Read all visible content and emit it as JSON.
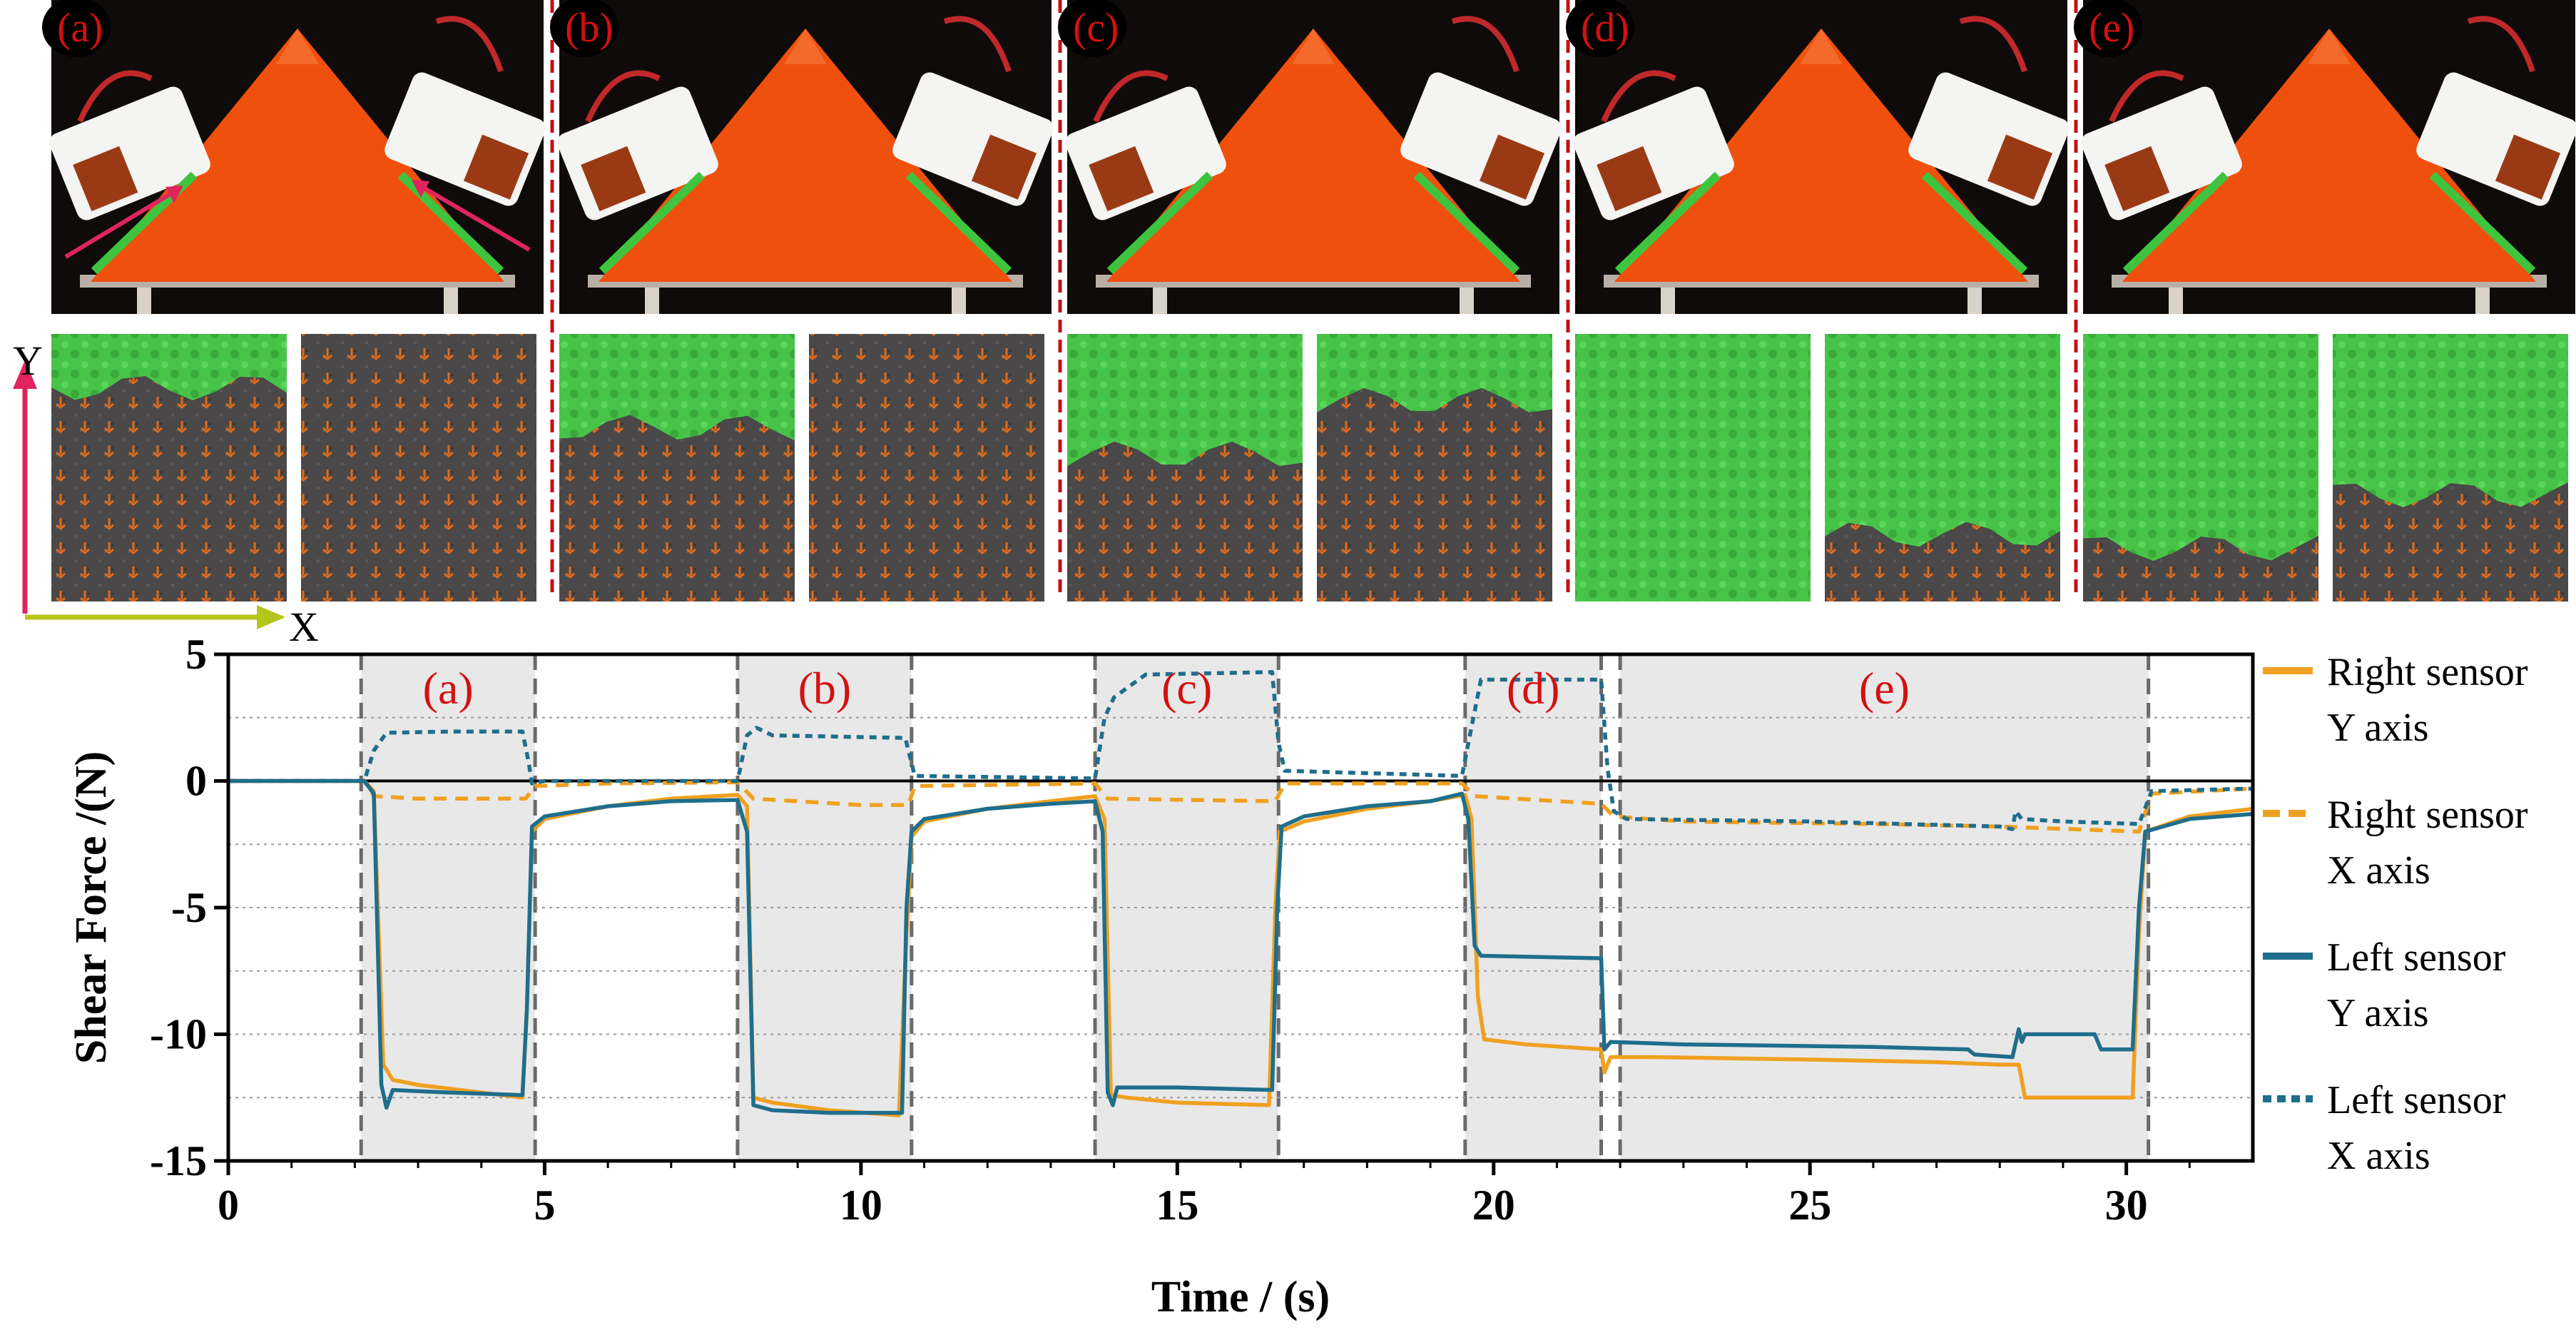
{
  "panels": [
    {
      "label": "(a)"
    },
    {
      "label": "(b)"
    },
    {
      "label": "(c)"
    },
    {
      "label": "(d)"
    },
    {
      "label": "(e)"
    }
  ],
  "axes_indicator": {
    "y_label": "Y",
    "x_label": "X",
    "y_color": "#e0245e",
    "x_color": "#b5c61a"
  },
  "colors": {
    "orange": "#f0a020",
    "teal": "#1f6e8c",
    "green": "#3ec43e",
    "red_label": "#d41010",
    "object": "#f0500e"
  },
  "chart_data": {
    "type": "line",
    "title": "",
    "xlabel": "Time / (s)",
    "ylabel": "Shear Force /(N)",
    "xlim": [
      0,
      32
    ],
    "ylim": [
      -15,
      5
    ],
    "xticks": [
      0,
      5,
      10,
      15,
      20,
      25,
      30
    ],
    "yticks": [
      5,
      0,
      -5,
      -10,
      -15
    ],
    "phases": [
      {
        "label": "(a)",
        "start": 2.1,
        "end": 4.85
      },
      {
        "label": "(b)",
        "start": 8.05,
        "end": 10.8
      },
      {
        "label": "(c)",
        "start": 13.7,
        "end": 16.6
      },
      {
        "label": "(d)",
        "start": 19.55,
        "end": 21.7
      },
      {
        "label": "(e)",
        "start": 22.0,
        "end": 30.35
      }
    ],
    "series": [
      {
        "name": "Right sensor Y axis",
        "legend": [
          "Right sensor",
          "Y axis"
        ],
        "color": "#f0a020",
        "style": "solid",
        "points": [
          [
            0,
            0
          ],
          [
            2.15,
            0
          ],
          [
            2.3,
            -0.4
          ],
          [
            2.45,
            -11.2
          ],
          [
            2.6,
            -11.8
          ],
          [
            3,
            -12.0
          ],
          [
            4,
            -12.3
          ],
          [
            4.65,
            -12.5
          ],
          [
            4.72,
            -9
          ],
          [
            4.8,
            -2
          ],
          [
            5,
            -1.5
          ],
          [
            6,
            -1.0
          ],
          [
            7,
            -0.7
          ],
          [
            8.05,
            -0.55
          ],
          [
            8.2,
            -1
          ],
          [
            8.3,
            -12.5
          ],
          [
            8.6,
            -12.7
          ],
          [
            9.5,
            -13.0
          ],
          [
            10.6,
            -13.2
          ],
          [
            10.72,
            -6
          ],
          [
            10.8,
            -2.2
          ],
          [
            11,
            -1.6
          ],
          [
            12,
            -1.1
          ],
          [
            13,
            -0.8
          ],
          [
            13.7,
            -0.6
          ],
          [
            13.85,
            -1.5
          ],
          [
            13.95,
            -12.4
          ],
          [
            14.2,
            -12.5
          ],
          [
            15,
            -12.7
          ],
          [
            16.45,
            -12.8
          ],
          [
            16.55,
            -5
          ],
          [
            16.62,
            -2
          ],
          [
            17,
            -1.6
          ],
          [
            18,
            -1.1
          ],
          [
            19,
            -0.8
          ],
          [
            19.55,
            -0.55
          ],
          [
            19.65,
            -1.5
          ],
          [
            19.75,
            -8.5
          ],
          [
            19.85,
            -10.2
          ],
          [
            20.5,
            -10.4
          ],
          [
            21.7,
            -10.6
          ],
          [
            21.75,
            -11.5
          ],
          [
            21.85,
            -10.9
          ],
          [
            22.5,
            -10.9
          ],
          [
            25,
            -11.0
          ],
          [
            27,
            -11.1
          ],
          [
            28,
            -11.2
          ],
          [
            28.3,
            -11.2
          ],
          [
            28.4,
            -12.5
          ],
          [
            29,
            -12.5
          ],
          [
            30.1,
            -12.5
          ],
          [
            30.2,
            -6
          ],
          [
            30.3,
            -2
          ],
          [
            31,
            -1.4
          ],
          [
            32,
            -1.1
          ]
        ]
      },
      {
        "name": "Right sensor X axis",
        "legend": [
          "Right sensor",
          "X axis"
        ],
        "color": "#f0a020",
        "style": "dashed",
        "points": [
          [
            0,
            0
          ],
          [
            2.15,
            0
          ],
          [
            2.3,
            -0.6
          ],
          [
            3,
            -0.7
          ],
          [
            4.7,
            -0.7
          ],
          [
            4.85,
            -0.2
          ],
          [
            6,
            -0.1
          ],
          [
            8.05,
            -0.05
          ],
          [
            8.3,
            -0.7
          ],
          [
            10,
            -0.95
          ],
          [
            10.75,
            -0.95
          ],
          [
            10.85,
            -0.2
          ],
          [
            13.7,
            -0.1
          ],
          [
            13.9,
            -0.7
          ],
          [
            16.55,
            -0.8
          ],
          [
            16.7,
            -0.1
          ],
          [
            19.5,
            -0.1
          ],
          [
            19.7,
            -0.6
          ],
          [
            21.7,
            -0.9
          ],
          [
            21.9,
            -1.4
          ],
          [
            23,
            -1.6
          ],
          [
            26,
            -1.7
          ],
          [
            28,
            -1.8
          ],
          [
            30.2,
            -2.0
          ],
          [
            30.4,
            -0.5
          ],
          [
            32,
            -0.3
          ]
        ]
      },
      {
        "name": "Left sensor Y axis",
        "legend": [
          "Left sensor",
          "Y axis"
        ],
        "color": "#1f6e8c",
        "style": "solid",
        "points": [
          [
            0,
            0
          ],
          [
            2.15,
            0
          ],
          [
            2.3,
            -0.5
          ],
          [
            2.42,
            -12.0
          ],
          [
            2.5,
            -12.9
          ],
          [
            2.6,
            -12.2
          ],
          [
            3.5,
            -12.3
          ],
          [
            4.65,
            -12.4
          ],
          [
            4.72,
            -9
          ],
          [
            4.8,
            -1.8
          ],
          [
            5,
            -1.4
          ],
          [
            6,
            -1.0
          ],
          [
            7,
            -0.8
          ],
          [
            8.05,
            -0.75
          ],
          [
            8.2,
            -2
          ],
          [
            8.3,
            -12.8
          ],
          [
            8.6,
            -13.0
          ],
          [
            9.5,
            -13.1
          ],
          [
            10.65,
            -13.1
          ],
          [
            10.72,
            -5
          ],
          [
            10.8,
            -2.0
          ],
          [
            11,
            -1.5
          ],
          [
            12,
            -1.1
          ],
          [
            13,
            -0.9
          ],
          [
            13.7,
            -0.8
          ],
          [
            13.82,
            -2
          ],
          [
            13.9,
            -12.3
          ],
          [
            13.98,
            -12.8
          ],
          [
            14.05,
            -12.1
          ],
          [
            15,
            -12.1
          ],
          [
            16.5,
            -12.2
          ],
          [
            16.58,
            -5
          ],
          [
            16.65,
            -1.8
          ],
          [
            17,
            -1.4
          ],
          [
            18,
            -1.0
          ],
          [
            19,
            -0.8
          ],
          [
            19.5,
            -0.5
          ],
          [
            19.6,
            -1.5
          ],
          [
            19.7,
            -6.5
          ],
          [
            19.8,
            -6.9
          ],
          [
            21.7,
            -7.0
          ],
          [
            21.75,
            -10.6
          ],
          [
            21.85,
            -10.3
          ],
          [
            23,
            -10.4
          ],
          [
            26,
            -10.5
          ],
          [
            27.5,
            -10.6
          ],
          [
            27.6,
            -10.8
          ],
          [
            28.2,
            -10.9
          ],
          [
            28.3,
            -9.8
          ],
          [
            28.35,
            -10.3
          ],
          [
            28.4,
            -10.0
          ],
          [
            29.5,
            -10.0
          ],
          [
            29.6,
            -10.6
          ],
          [
            30.1,
            -10.6
          ],
          [
            30.2,
            -5
          ],
          [
            30.3,
            -2
          ],
          [
            31,
            -1.5
          ],
          [
            32,
            -1.3
          ]
        ]
      },
      {
        "name": "Left sensor X axis",
        "legend": [
          "Left sensor",
          "X axis"
        ],
        "color": "#1f6e8c",
        "style": "dotted",
        "points": [
          [
            0,
            0
          ],
          [
            2.15,
            0
          ],
          [
            2.3,
            1.2
          ],
          [
            2.5,
            1.9
          ],
          [
            3.5,
            1.95
          ],
          [
            4.65,
            1.95
          ],
          [
            4.75,
            0.7
          ],
          [
            4.8,
            -0.1
          ],
          [
            5,
            0
          ],
          [
            8.05,
            0
          ],
          [
            8.2,
            1.8
          ],
          [
            8.35,
            2.1
          ],
          [
            8.6,
            1.8
          ],
          [
            10.7,
            1.7
          ],
          [
            10.85,
            0.2
          ],
          [
            13.7,
            0.1
          ],
          [
            13.85,
            2.5
          ],
          [
            14,
            3.3
          ],
          [
            14.5,
            4.2
          ],
          [
            16.5,
            4.3
          ],
          [
            16.6,
            1.5
          ],
          [
            16.7,
            0.4
          ],
          [
            19.5,
            0.2
          ],
          [
            19.6,
            1.5
          ],
          [
            19.8,
            4.0
          ],
          [
            21.7,
            4.0
          ],
          [
            21.8,
            0.5
          ],
          [
            21.9,
            -1.2
          ],
          [
            22.1,
            -1.5
          ],
          [
            25,
            -1.6
          ],
          [
            28,
            -1.8
          ],
          [
            28.2,
            -1.9
          ],
          [
            28.25,
            -1.2
          ],
          [
            28.35,
            -1.5
          ],
          [
            29,
            -1.6
          ],
          [
            30.2,
            -1.7
          ],
          [
            30.4,
            -0.4
          ],
          [
            32,
            -0.3
          ]
        ]
      }
    ]
  }
}
